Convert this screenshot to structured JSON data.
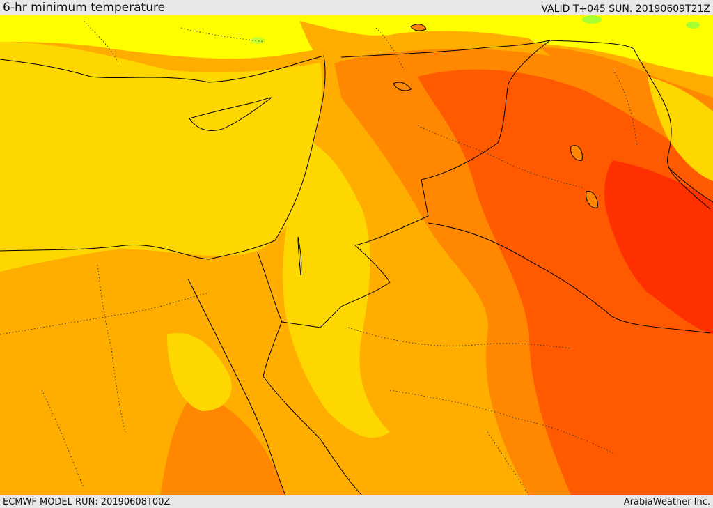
{
  "header": {
    "title": "6-hr minimum temperature",
    "valid": "VALID T+045 SUN. 20190609T21Z"
  },
  "footer": {
    "model_run": "ECMWF MODEL RUN: 20190608T00Z",
    "credit": "ArabiaWeather Inc."
  },
  "map": {
    "colors": {
      "cool_yellow": "#ffff00",
      "yellow": "#ffd700",
      "light_orange": "#ffae00",
      "orange": "#ff8800",
      "red_orange": "#ff5a00",
      "red": "#ff3000",
      "green": "#a8ff30",
      "border": "#000000"
    }
  }
}
